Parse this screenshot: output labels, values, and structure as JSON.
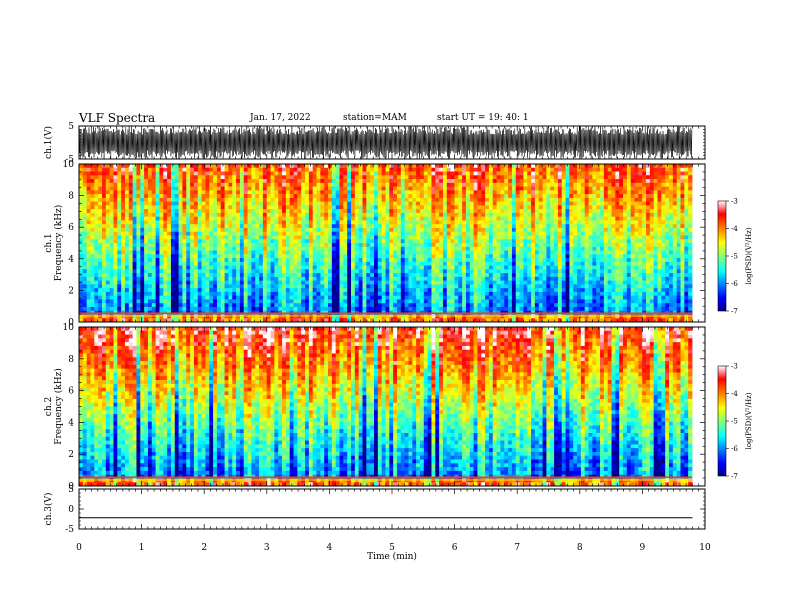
{
  "header": {
    "title": "VLF Spectra",
    "date": "Jan. 17, 2022",
    "station": "station=MAM",
    "start_ut": "start  UT  =   19: 40: 1"
  },
  "chart_data": [
    {
      "type": "line",
      "panel": "ch1-waveform",
      "ylabel": "ch.1(V)",
      "ylim": [
        -5,
        5
      ],
      "yticks": [
        "5",
        "-5"
      ],
      "xlim": [
        0,
        10
      ],
      "xlabel": "",
      "description_values": "dense noise waveform nearly saturating between -5 and 5 V"
    },
    {
      "type": "heatmap",
      "panel": "ch1-spectrogram",
      "ylabel_line1": "ch.1",
      "ylabel_line2": "Frequency (kHz)",
      "ylim": [
        0,
        10
      ],
      "yticks": [
        "0",
        "2",
        "4",
        "6",
        "8",
        "10"
      ],
      "xlim": [
        0,
        9.8
      ],
      "colorbar": {
        "label": "log(PSD)(V²/Hz)",
        "range": [
          -7,
          -3
        ],
        "ticks": [
          "-3",
          "-4",
          "-5",
          "-6",
          "-7"
        ]
      }
    },
    {
      "type": "heatmap",
      "panel": "ch2-spectrogram",
      "ylabel_line1": "ch.2",
      "ylabel_line2": "Frequency (kHz)",
      "ylim": [
        0,
        10
      ],
      "yticks": [
        "0",
        "2",
        "4",
        "6",
        "8",
        "10"
      ],
      "xlim": [
        0,
        9.8
      ],
      "colorbar": {
        "label": "log(PSD)(V²/Hz)",
        "range": [
          -7,
          -3
        ],
        "ticks": [
          "-3",
          "-4",
          "-5",
          "-6",
          "-7"
        ]
      }
    },
    {
      "type": "line",
      "panel": "ch3-waveform",
      "ylabel": "ch.3(V)",
      "ylim": [
        -5,
        5
      ],
      "yticks": [
        "5",
        "0",
        "-5"
      ],
      "xlim": [
        0,
        10
      ],
      "series": [
        {
          "x": [
            0,
            9.8
          ],
          "values": [
            -2.2,
            -2.2
          ]
        }
      ],
      "xlabel": "Time  (min)",
      "xticks": [
        "0",
        "1",
        "2",
        "3",
        "4",
        "5",
        "6",
        "7",
        "8",
        "9",
        "10"
      ]
    }
  ]
}
